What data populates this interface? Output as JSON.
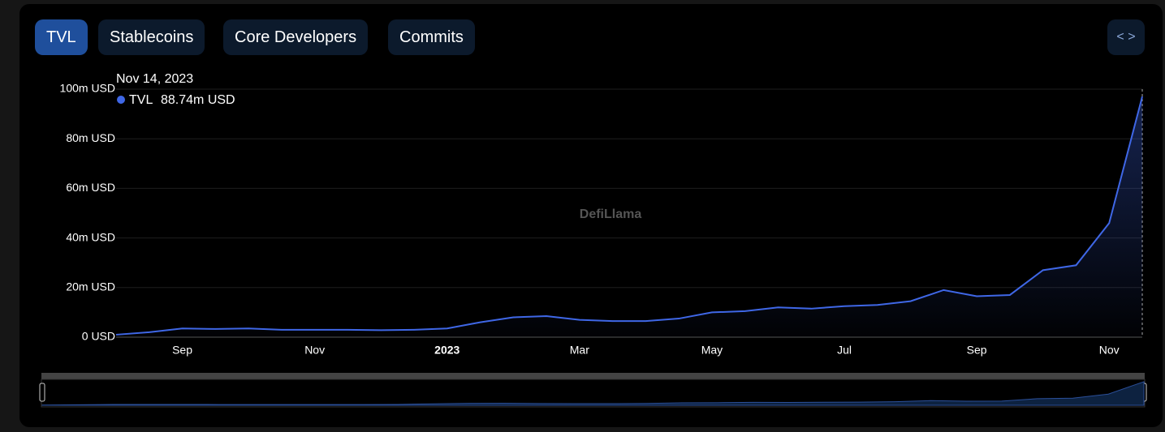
{
  "tabs": [
    "TVL",
    "Stablecoins",
    "Core Developers",
    "Commits"
  ],
  "watermark": "DefiLlama",
  "tooltip": {
    "date": "Nov 14, 2023",
    "series": "TVL",
    "value": "88.74m USD"
  },
  "chart_data": {
    "type": "line",
    "color": "#3f67e6",
    "grid": true,
    "categories": [
      null,
      null,
      "Sep",
      null,
      null,
      null,
      "Nov",
      null,
      null,
      null,
      "2023",
      null,
      null,
      null,
      "Mar",
      null,
      null,
      null,
      "May",
      null,
      null,
      null,
      "Jul",
      null,
      null,
      null,
      "Sep",
      null,
      null,
      null,
      "Nov",
      null
    ],
    "series": [
      {
        "name": "TVL",
        "color": "#3f67e6",
        "values": [
          1.0,
          2.0,
          3.5,
          3.3,
          3.5,
          3.0,
          3.0,
          3.0,
          2.8,
          3.0,
          3.5,
          6,
          8,
          8.5,
          7,
          6.5,
          6.5,
          7.5,
          10,
          10.5,
          12,
          11.5,
          12.5,
          13,
          14.5,
          19,
          16.5,
          17,
          27,
          29,
          46,
          97
        ]
      }
    ],
    "ylim": [
      0,
      100
    ],
    "yticks": [
      {
        "value": 0,
        "label": "0 USD"
      },
      {
        "value": 20,
        "label": "20m USD"
      },
      {
        "value": 40,
        "label": "40m USD"
      },
      {
        "value": 60,
        "label": "60m USD"
      },
      {
        "value": 80,
        "label": "80m USD"
      },
      {
        "value": 100,
        "label": "100m USD"
      }
    ]
  }
}
